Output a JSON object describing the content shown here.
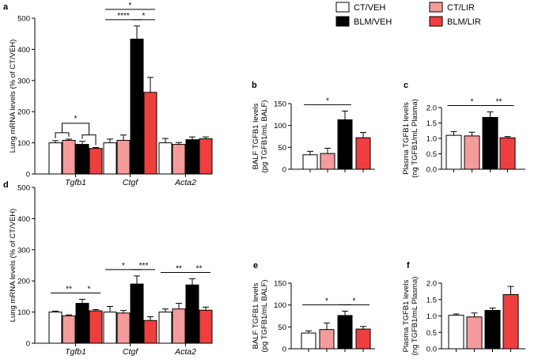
{
  "colors": {
    "CT/VEH": "#ffffff",
    "CT/LIR": "#f59b9b",
    "BLM/VEH": "#000000",
    "BLM/LIR": "#ef3e3e"
  },
  "legend": [
    "CT/VEH",
    "BLM/VEH",
    "CT/LIR",
    "BLM/LIR"
  ],
  "chart_data": [
    {
      "panel": "a",
      "type": "bar",
      "ylabel": "Lung mRNA levels (% of CT/VEH)",
      "ylim": [
        0,
        500
      ],
      "yticks": [
        0,
        100,
        200,
        300,
        400,
        500
      ],
      "categories": [
        "Tgfb1",
        "Ctgf",
        "Acta2"
      ],
      "series": [
        {
          "name": "CT/VEH",
          "values": [
            100,
            100,
            100
          ],
          "errors": [
            7,
            12,
            14
          ]
        },
        {
          "name": "CT/LIR",
          "values": [
            108,
            108,
            95
          ],
          "errors": [
            4,
            17,
            6
          ]
        },
        {
          "name": "BLM/VEH",
          "values": [
            95,
            433,
            110
          ],
          "errors": [
            10,
            42,
            9
          ]
        },
        {
          "name": "BLM/LIR",
          "values": [
            82,
            262,
            113
          ],
          "errors": [
            3,
            48,
            6
          ]
        }
      ],
      "significance": [
        {
          "label": "*",
          "between": [
            [
              0,
              0
            ],
            [
              0,
              1
            ],
            [
              0,
              2
            ],
            [
              0,
              3
            ]
          ],
          "kind": "group"
        },
        {
          "label": "****",
          "between": [
            [
              1,
              0
            ],
            [
              1,
              2
            ]
          ],
          "level": 1
        },
        {
          "label": "*",
          "between": [
            [
              1,
              2
            ],
            [
              1,
              3
            ]
          ],
          "level": 1
        },
        {
          "label": "*",
          "between": [
            [
              1,
              0
            ],
            [
              1,
              3
            ]
          ],
          "level": 2
        }
      ]
    },
    {
      "panel": "b",
      "type": "bar",
      "ylabel": "BALF TGFB1 levels",
      "ylabel2": "(pg TGFB1/mL BALF)",
      "ylim": [
        0,
        150
      ],
      "yticks": [
        0,
        50,
        100,
        150
      ],
      "series": [
        {
          "name": "CT/VEH",
          "value": 33,
          "error": 8
        },
        {
          "name": "CT/LIR",
          "value": 36,
          "error": 12
        },
        {
          "name": "BLM/VEH",
          "value": 113,
          "error": 20
        },
        {
          "name": "BLM/LIR",
          "value": 72,
          "error": 12
        }
      ],
      "significance": [
        {
          "label": "*",
          "between": [
            0,
            2
          ],
          "level": 1
        }
      ]
    },
    {
      "panel": "c",
      "type": "bar",
      "ylabel": "Plasma TGFB1 levels",
      "ylabel2": "(ng TGFB1/mL Plasma)",
      "ylim": [
        0,
        2.0
      ],
      "yticks": [
        "0.0",
        "0.5",
        "1.0",
        "1.5",
        "2.0"
      ],
      "series": [
        {
          "name": "CT/VEH",
          "value": 1.1,
          "error": 0.12
        },
        {
          "name": "CT/LIR",
          "value": 1.08,
          "error": 0.12
        },
        {
          "name": "BLM/VEH",
          "value": 1.68,
          "error": 0.18
        },
        {
          "name": "BLM/LIR",
          "value": 1.02,
          "error": 0.04
        }
      ],
      "significance": [
        {
          "label": "*",
          "between": [
            0,
            2
          ],
          "level": 1
        },
        {
          "label": "**",
          "between": [
            2,
            3
          ],
          "level": 1
        }
      ]
    },
    {
      "panel": "d",
      "type": "bar",
      "ylabel": "Lung mRNA levels (% of CT/VEH)",
      "ylim": [
        0,
        500
      ],
      "yticks": [
        0,
        100,
        200,
        300,
        400,
        500
      ],
      "categories": [
        "Tgfb1",
        "Ctgf",
        "Acta2"
      ],
      "series": [
        {
          "name": "CT/VEH",
          "values": [
            100,
            100,
            100
          ],
          "errors": [
            3,
            18,
            10
          ]
        },
        {
          "name": "CT/LIR",
          "values": [
            88,
            97,
            110
          ],
          "errors": [
            3,
            8,
            18
          ]
        },
        {
          "name": "BLM/VEH",
          "values": [
            128,
            190,
            187
          ],
          "errors": [
            13,
            26,
            20
          ]
        },
        {
          "name": "BLM/LIR",
          "values": [
            104,
            73,
            106
          ],
          "errors": [
            4,
            12,
            10
          ]
        }
      ],
      "significance": [
        {
          "label": "**",
          "between": [
            [
              0,
              0
            ],
            [
              0,
              2
            ]
          ],
          "level": 1
        },
        {
          "label": "*",
          "between": [
            [
              0,
              2
            ],
            [
              0,
              3
            ]
          ],
          "level": 1
        },
        {
          "label": "*",
          "between": [
            [
              1,
              0
            ],
            [
              1,
              2
            ]
          ],
          "level": 1
        },
        {
          "label": "***",
          "between": [
            [
              1,
              2
            ],
            [
              1,
              3
            ]
          ],
          "level": 1
        },
        {
          "label": "**",
          "between": [
            [
              2,
              0
            ],
            [
              2,
              2
            ]
          ],
          "level": 1
        },
        {
          "label": "**",
          "between": [
            [
              2,
              2
            ],
            [
              2,
              3
            ]
          ],
          "level": 1
        }
      ]
    },
    {
      "panel": "e",
      "type": "bar",
      "ylabel": "BALF TGFB1 levels",
      "ylabel2": "(pg TGFB1/mL BALF)",
      "ylim": [
        0,
        150
      ],
      "yticks": [
        0,
        50,
        100,
        150
      ],
      "series": [
        {
          "name": "CT/VEH",
          "value": 36,
          "error": 5
        },
        {
          "name": "CT/LIR",
          "value": 44,
          "error": 15
        },
        {
          "name": "BLM/VEH",
          "value": 76,
          "error": 10
        },
        {
          "name": "BLM/LIR",
          "value": 45,
          "error": 6
        }
      ],
      "significance": [
        {
          "label": "*",
          "between": [
            0,
            2
          ],
          "level": 1
        },
        {
          "label": "*",
          "between": [
            2,
            3
          ],
          "level": 1
        }
      ]
    },
    {
      "panel": "f",
      "type": "bar",
      "ylabel": "Plasma TGFB1 levels",
      "ylabel2": "(ng TGFB1/mL Plasma)",
      "ylim": [
        0,
        2.0
      ],
      "yticks": [
        "0.0",
        "0.5",
        "1.0",
        "1.5",
        "2.0"
      ],
      "series": [
        {
          "name": "CT/VEH",
          "value": 1.02,
          "error": 0.04
        },
        {
          "name": "CT/LIR",
          "value": 0.97,
          "error": 0.12
        },
        {
          "name": "BLM/VEH",
          "value": 1.17,
          "error": 0.07
        },
        {
          "name": "BLM/LIR",
          "value": 1.65,
          "error": 0.25
        }
      ],
      "significance": []
    }
  ]
}
